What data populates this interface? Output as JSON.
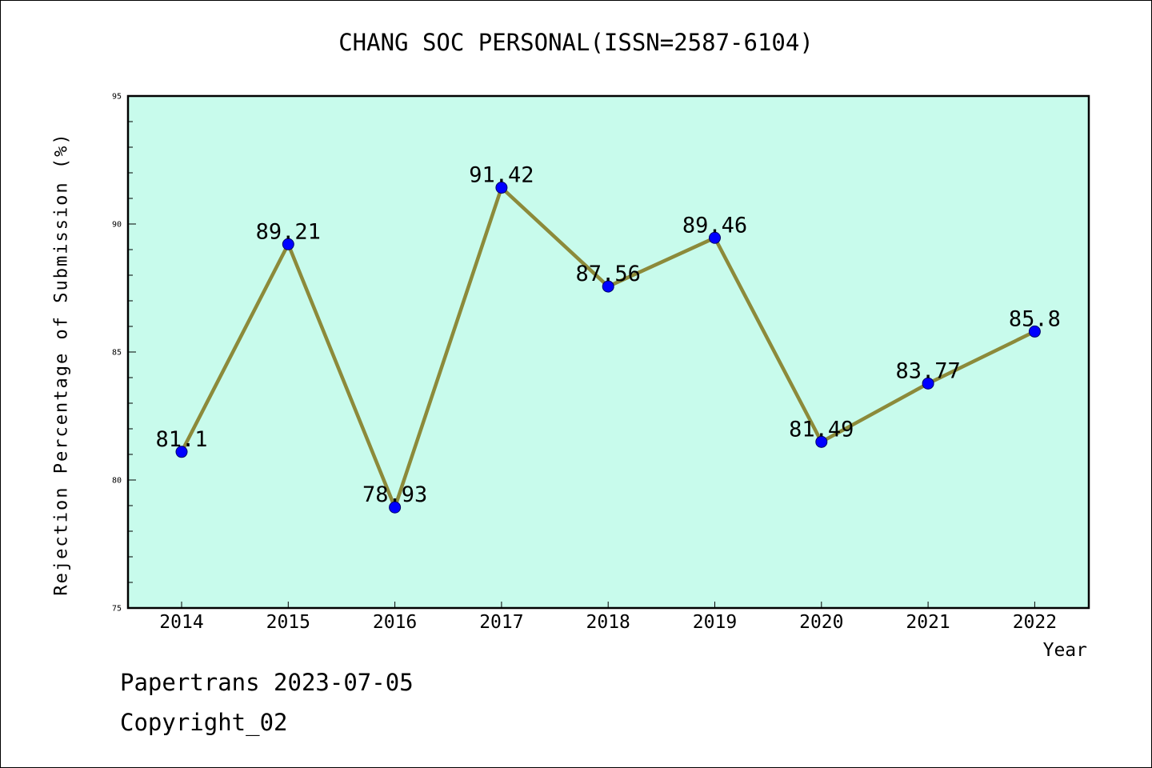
{
  "chart_data": {
    "type": "line",
    "title": "CHANG SOC PERSONAL(ISSN=2587-6104)",
    "xlabel": "Year",
    "ylabel": "Rejection Percentage of Submission (%)",
    "categories": [
      "2014",
      "2015",
      "2016",
      "2017",
      "2018",
      "2019",
      "2020",
      "2021",
      "2022"
    ],
    "series": [
      {
        "values": [
          81.1,
          89.21,
          78.93,
          91.42,
          87.56,
          89.46,
          81.49,
          83.77,
          85.8
        ],
        "labels": [
          "81.1",
          "89.21",
          "78.93",
          "91.42",
          "87.56",
          "89.46",
          "81.49",
          "83.77",
          "85.8"
        ]
      }
    ],
    "ylim": [
      75,
      95
    ],
    "yticks": [
      "75",
      "80",
      "85",
      "90",
      "95"
    ],
    "grid": false,
    "colors": {
      "plot_background": "#c8fbec",
      "line": "#8c8a3a",
      "marker": "#0000ff"
    }
  },
  "footer": {
    "line1": "Papertrans 2023-07-05",
    "line2": "Copyright_02"
  }
}
